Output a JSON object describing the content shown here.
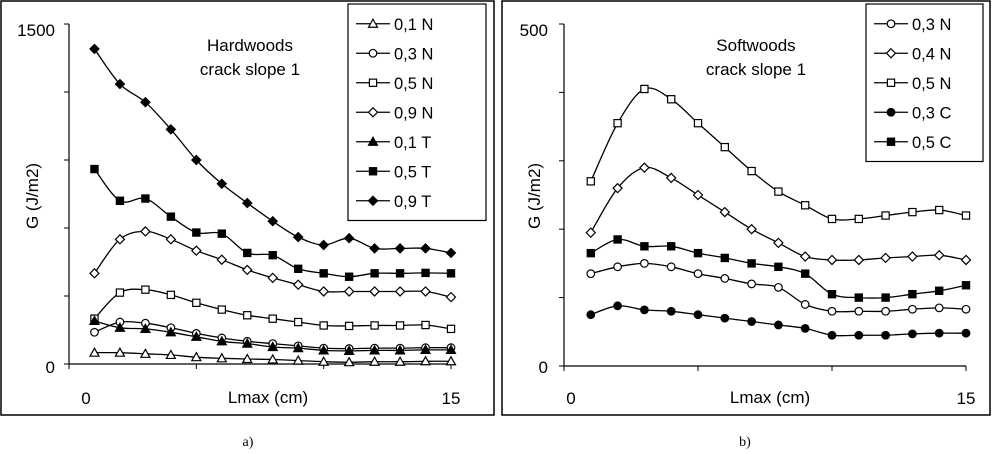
{
  "chart_data": [
    {
      "id": "a",
      "type": "line",
      "caption": "a)",
      "annotation": [
        "Hardwoods",
        "crack slope 1"
      ],
      "xlabel": "Lmax (cm)",
      "ylabel": "G (J/m2)",
      "xlim": [
        0,
        15
      ],
      "ylim": [
        0,
        1500
      ],
      "x_tick_labels": [
        "0",
        "15"
      ],
      "y_tick_labels": [
        "0",
        "1500"
      ],
      "y_minor_step": 300,
      "x": [
        1,
        2,
        3,
        4,
        5,
        6,
        7,
        8,
        9,
        10,
        11,
        12,
        13,
        14,
        15
      ],
      "legend_position": "top-right",
      "series": [
        {
          "name": "0,1 N",
          "marker": "triangle-open",
          "values": [
            50,
            50,
            45,
            40,
            30,
            25,
            22,
            20,
            15,
            10,
            8,
            10,
            10,
            12,
            12
          ]
        },
        {
          "name": "0,3 N",
          "marker": "circle-open",
          "values": [
            140,
            185,
            180,
            160,
            135,
            115,
            100,
            90,
            80,
            70,
            68,
            70,
            70,
            72,
            72
          ]
        },
        {
          "name": "0,5 N",
          "marker": "square-open",
          "values": [
            200,
            315,
            328,
            305,
            270,
            240,
            215,
            200,
            185,
            170,
            168,
            170,
            170,
            172,
            155
          ]
        },
        {
          "name": "0,9 N",
          "marker": "diamond-open",
          "values": [
            400,
            550,
            585,
            550,
            500,
            460,
            415,
            380,
            350,
            320,
            320,
            320,
            320,
            320,
            295
          ]
        },
        {
          "name": "0,1 T",
          "marker": "triangle-filled",
          "values": [
            190,
            160,
            155,
            140,
            120,
            100,
            90,
            75,
            70,
            60,
            58,
            60,
            60,
            62,
            62
          ]
        },
        {
          "name": "0,5 T",
          "marker": "square-filled",
          "values": [
            860,
            720,
            730,
            650,
            580,
            575,
            490,
            480,
            420,
            400,
            385,
            400,
            400,
            402,
            400
          ]
        },
        {
          "name": "0,9 T",
          "marker": "diamond-filled",
          "values": [
            1390,
            1235,
            1155,
            1035,
            900,
            795,
            710,
            630,
            560,
            525,
            555,
            510,
            510,
            510,
            490
          ]
        }
      ]
    },
    {
      "id": "b",
      "type": "line",
      "caption": "b)",
      "annotation": [
        "Softwoods",
        "crack slope 1"
      ],
      "xlabel": "Lmax (cm)",
      "ylabel": "G (J/m2)",
      "xlim": [
        0,
        15
      ],
      "ylim": [
        0,
        500
      ],
      "x_tick_labels": [
        "0",
        "15"
      ],
      "y_tick_labels": [
        "0",
        "500"
      ],
      "y_minor_step": 100,
      "x": [
        1,
        2,
        3,
        4,
        5,
        6,
        7,
        8,
        9,
        10,
        11,
        12,
        13,
        14,
        15
      ],
      "legend_position": "top-right",
      "series": [
        {
          "name": "0,3 N",
          "marker": "circle-open",
          "values": [
            135,
            145,
            150,
            145,
            135,
            128,
            120,
            115,
            90,
            80,
            80,
            80,
            83,
            85,
            83
          ]
        },
        {
          "name": "0,4 N",
          "marker": "diamond-open",
          "values": [
            195,
            260,
            290,
            275,
            250,
            225,
            200,
            180,
            160,
            155,
            155,
            158,
            160,
            162,
            155
          ]
        },
        {
          "name": "0,5 N",
          "marker": "square-open",
          "values": [
            270,
            355,
            405,
            390,
            355,
            320,
            285,
            255,
            235,
            215,
            215,
            220,
            225,
            228,
            220
          ]
        },
        {
          "name": "0,3 C",
          "marker": "circle-filled",
          "values": [
            75,
            88,
            82,
            80,
            75,
            70,
            65,
            60,
            55,
            45,
            45,
            45,
            47,
            48,
            48
          ]
        },
        {
          "name": "0,5 C",
          "marker": "square-filled",
          "values": [
            165,
            185,
            175,
            175,
            165,
            158,
            150,
            145,
            135,
            105,
            100,
            100,
            105,
            110,
            118
          ]
        }
      ]
    }
  ]
}
